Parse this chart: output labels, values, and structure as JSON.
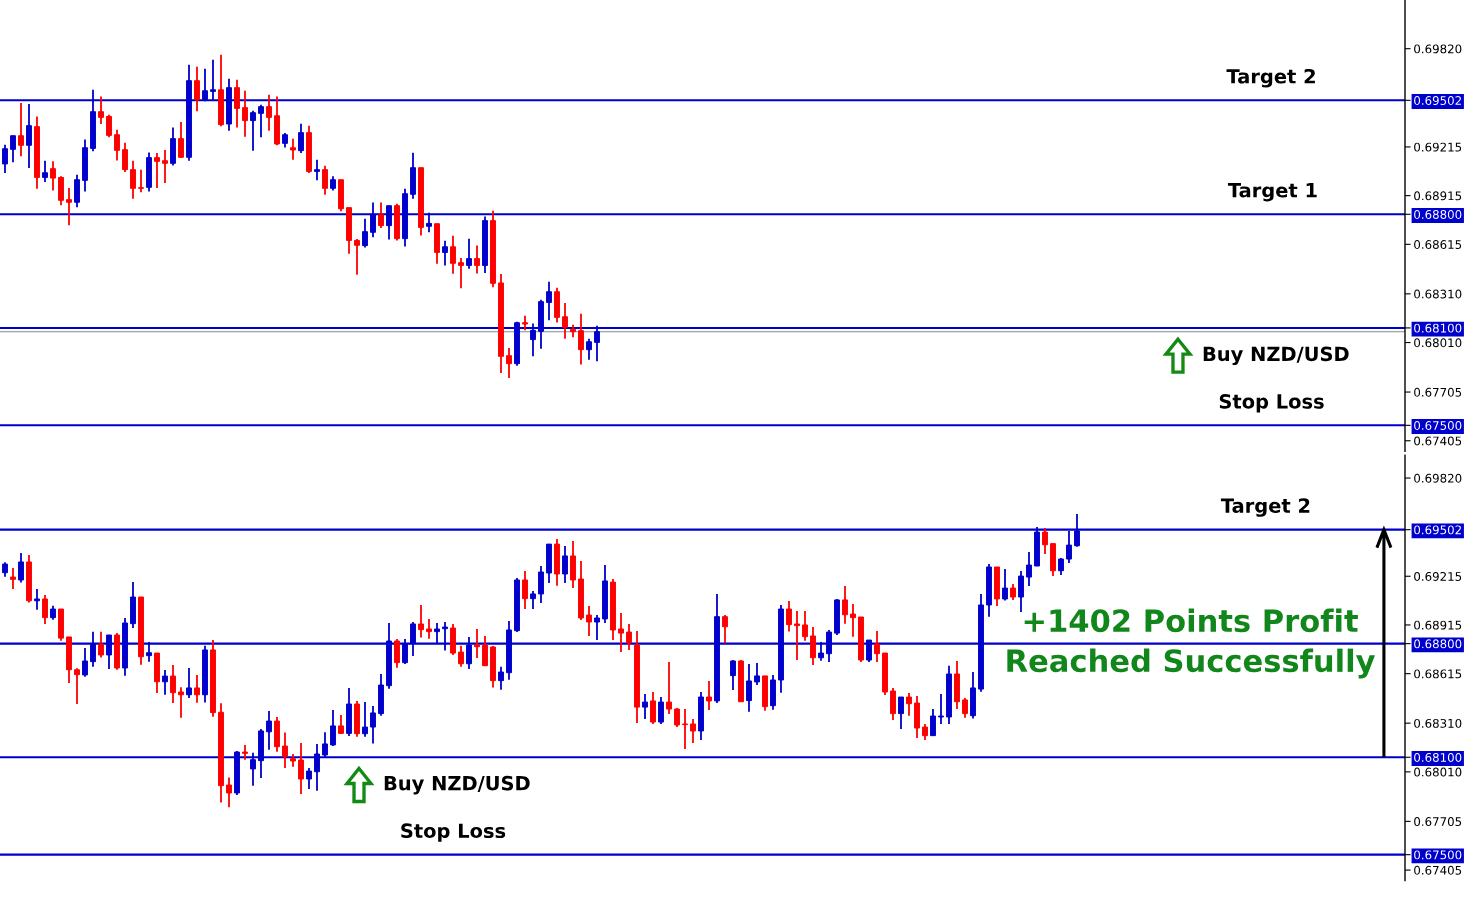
{
  "chart_data": [
    {
      "type": "candlestick",
      "categories": [
        null,
        null,
        null,
        null,
        null,
        null,
        null,
        null,
        null,
        null,
        null,
        null,
        null,
        null,
        null,
        null,
        null,
        null,
        null,
        null,
        null,
        null,
        null,
        null,
        null,
        null,
        null,
        null,
        null,
        null,
        null,
        null,
        null,
        null,
        null,
        null,
        null,
        null,
        null,
        null,
        null,
        null,
        null,
        null,
        null,
        null,
        null,
        null,
        null,
        null,
        null,
        null,
        null,
        null,
        null,
        null,
        null,
        null,
        null,
        null,
        null,
        null,
        null,
        null,
        null,
        null,
        null,
        null,
        null,
        null,
        null,
        null,
        null,
        null,
        null,
        null,
        null,
        null,
        null,
        null,
        null,
        null,
        null,
        null,
        null,
        null,
        null,
        null,
        null,
        null,
        null,
        null,
        null,
        null,
        null,
        null,
        null,
        null,
        null,
        null,
        null,
        null,
        null,
        null,
        null,
        null,
        null,
        null,
        null,
        null,
        null,
        null,
        null,
        null,
        null,
        null,
        null,
        null,
        null,
        null,
        null,
        null,
        null,
        null,
        null,
        null,
        null,
        null,
        null,
        null,
        null,
        null,
        null,
        null,
        null,
        null,
        null,
        null,
        null,
        null,
        null,
        null,
        null,
        null,
        null,
        null,
        null,
        null,
        null,
        null,
        null,
        null,
        null,
        null,
        null,
        null,
        null,
        null,
        null,
        null,
        null,
        null,
        null,
        null,
        null,
        null,
        null,
        null,
        null,
        null,
        null,
        null,
        null,
        null,
        null
      ],
      "ohlc": [
        [
          0.6911,
          0.69229,
          0.69054,
          0.69204
        ],
        [
          0.692,
          0.69284,
          0.6912,
          0.69284
        ],
        [
          0.69284,
          0.69485,
          0.69157,
          0.69225
        ],
        [
          0.69225,
          0.69479,
          0.69085,
          0.69346
        ],
        [
          0.6934,
          0.69403,
          0.68958,
          0.69027
        ],
        [
          0.69027,
          0.6913,
          0.68999,
          0.69056
        ],
        [
          0.69081,
          0.69126,
          0.68947,
          0.69023
        ],
        [
          0.69027,
          0.69034,
          0.68855,
          0.68886
        ],
        [
          0.6889,
          0.68962,
          0.68732,
          0.68874
        ],
        [
          0.68874,
          0.69044,
          0.68843,
          0.69013
        ],
        [
          0.69009,
          0.6926,
          0.68941,
          0.6921
        ],
        [
          0.69206,
          0.69567,
          0.69188,
          0.69432
        ],
        [
          0.69432,
          0.69526,
          0.69356,
          0.69397
        ],
        [
          0.69403,
          0.69413,
          0.69274,
          0.69286
        ],
        [
          0.6929,
          0.69321,
          0.69132,
          0.69194
        ],
        [
          0.69198,
          0.69241,
          0.6906,
          0.69075
        ],
        [
          0.69075,
          0.6913,
          0.68896,
          0.6896
        ],
        [
          0.68964,
          0.69075,
          0.68935,
          0.6896
        ],
        [
          0.68966,
          0.69181,
          0.68941,
          0.69149
        ],
        [
          0.69149,
          0.69177,
          0.68962,
          0.69126
        ],
        [
          0.6913,
          0.69196,
          0.68993,
          0.69114
        ],
        [
          0.69114,
          0.69335,
          0.69101,
          0.69266
        ],
        [
          0.69266,
          0.69368,
          0.69147,
          0.69151
        ],
        [
          0.69151,
          0.69721,
          0.6913,
          0.69623
        ],
        [
          0.69623,
          0.69709,
          0.69434,
          0.69506
        ],
        [
          0.69506,
          0.69697,
          0.69496,
          0.69561
        ],
        [
          0.69557,
          0.69752,
          0.69506,
          0.69567
        ],
        [
          0.69567,
          0.69783,
          0.69342,
          0.69352
        ],
        [
          0.69356,
          0.69635,
          0.69315,
          0.6958
        ],
        [
          0.6958,
          0.69629,
          0.69335,
          0.69452
        ],
        [
          0.69457,
          0.69561,
          0.69278,
          0.69377
        ],
        [
          0.69377,
          0.69438,
          0.69192,
          0.69426
        ],
        [
          0.69422,
          0.69475,
          0.69274,
          0.69463
        ],
        [
          0.69463,
          0.69537,
          0.69315,
          0.69397
        ],
        [
          0.69407,
          0.69526,
          0.69225,
          0.69233
        ],
        [
          0.69237,
          0.69301,
          0.69212,
          0.6929
        ],
        [
          0.6921,
          0.69266,
          0.69136,
          0.69196
        ],
        [
          0.69192,
          0.69358,
          0.69177,
          0.69303
        ],
        [
          0.69303,
          0.69346,
          0.69054,
          0.69064
        ],
        [
          0.69064,
          0.69136,
          0.69009,
          0.69075
        ],
        [
          0.69075,
          0.69099,
          0.68921,
          0.6896
        ],
        [
          0.6896,
          0.69034,
          0.68947,
          0.69013
        ],
        [
          0.69013,
          0.69013,
          0.68818,
          0.68834
        ],
        [
          0.68841,
          0.68841,
          0.68557,
          0.68639
        ],
        [
          0.68639,
          0.68648,
          0.68428,
          0.68609
        ],
        [
          0.68607,
          0.68773,
          0.68596,
          0.68693
        ],
        [
          0.68689,
          0.68873,
          0.68658,
          0.68797
        ],
        [
          0.68797,
          0.68873,
          0.68715,
          0.6873
        ],
        [
          0.6873,
          0.68853,
          0.68644,
          0.68853
        ],
        [
          0.68853,
          0.68865,
          0.68639,
          0.6865
        ],
        [
          0.6865,
          0.68958,
          0.68602,
          0.68927
        ],
        [
          0.68923,
          0.69179,
          0.68896,
          0.69087
        ],
        [
          0.69087,
          0.69087,
          0.6867,
          0.68719
        ],
        [
          0.68726,
          0.6881,
          0.68689,
          0.68744
        ],
        [
          0.68742,
          0.68742,
          0.68496,
          0.68565
        ],
        [
          0.68565,
          0.68637,
          0.68485,
          0.686
        ],
        [
          0.686,
          0.68668,
          0.68434,
          0.68498
        ],
        [
          0.68502,
          0.68531,
          0.68344,
          0.68485
        ],
        [
          0.68485,
          0.6865,
          0.68465,
          0.68527
        ],
        [
          0.68527,
          0.68607,
          0.68436,
          0.68485
        ],
        [
          0.68485,
          0.68787,
          0.68438,
          0.68761
        ],
        [
          0.68761,
          0.68822,
          0.6835,
          0.68375
        ],
        [
          0.68377,
          0.68432,
          0.67822,
          0.67925
        ],
        [
          0.67929,
          0.67976,
          0.67792,
          0.6788
        ],
        [
          0.6788,
          0.68138,
          0.67867,
          0.68132
        ],
        [
          0.68132,
          0.68175,
          0.68085,
          0.68124
        ],
        [
          0.68028,
          0.68127,
          0.67925,
          0.68085
        ],
        [
          0.68079,
          0.68274,
          0.67972,
          0.68262
        ],
        [
          0.68257,
          0.68385,
          0.68147,
          0.68323
        ],
        [
          0.68323,
          0.68348,
          0.68134,
          0.68165
        ],
        [
          0.68169,
          0.68253,
          0.68034,
          0.68104
        ],
        [
          0.68091,
          0.6812,
          0.68042,
          0.68077
        ],
        [
          0.68083,
          0.68188,
          0.67874,
          0.67966
        ],
        [
          0.67966,
          0.68034,
          0.67904,
          0.68015
        ],
        [
          0.68011,
          0.68114,
          0.67894,
          0.68077
        ],
        null,
        null,
        null,
        null,
        null,
        null,
        null,
        null,
        null,
        null,
        null,
        null,
        null,
        null,
        null,
        null,
        null,
        null,
        null,
        null,
        null,
        null,
        null,
        null,
        null,
        null,
        null,
        null,
        null,
        null,
        null,
        null,
        null,
        null,
        null,
        null,
        null,
        null,
        null,
        null,
        null,
        null,
        null,
        null,
        null,
        null,
        null,
        null,
        null,
        null,
        null,
        null,
        null,
        null,
        null,
        null,
        null,
        null,
        null,
        null,
        null,
        null,
        null,
        null,
        null,
        null,
        null,
        null,
        null,
        null,
        null,
        null,
        null,
        null,
        null,
        null,
        null,
        null,
        null,
        null,
        null,
        null,
        null,
        null,
        null,
        null,
        null,
        null,
        null,
        null,
        null,
        null,
        null,
        null,
        null,
        null,
        null,
        null,
        null,
        null
      ],
      "colors": [
        "#0000cc",
        "#0000cc",
        "#ff0000",
        "#0000cc",
        "#ff0000",
        "#0000cc",
        "#ff0000",
        "#ff0000",
        "#ff0000",
        "#0000cc",
        "#0000cc",
        "#0000cc",
        "#ff0000",
        "#ff0000",
        "#ff0000",
        "#ff0000",
        "#ff0000",
        "#ff0000",
        "#0000cc",
        "#ff0000",
        "#ff0000",
        "#0000cc",
        "#ff0000",
        "#0000cc",
        "#ff0000",
        "#0000cc",
        "#0000cc",
        "#ff0000",
        "#0000cc",
        "#ff0000",
        "#ff0000",
        "#0000cc",
        "#0000cc",
        "#ff0000",
        "#ff0000",
        "#0000cc",
        "#ff0000",
        "#0000cc",
        "#ff0000",
        "#0000cc",
        "#ff0000",
        "#0000cc",
        "#ff0000",
        "#ff0000",
        "#ff0000",
        "#0000cc",
        "#0000cc",
        "#ff0000",
        "#0000cc",
        "#ff0000",
        "#0000cc",
        "#0000cc",
        "#ff0000",
        "#0000cc",
        "#ff0000",
        "#0000cc",
        "#ff0000",
        "#ff0000",
        "#0000cc",
        "#ff0000",
        "#0000cc",
        "#ff0000",
        "#ff0000",
        "#ff0000",
        "#0000cc",
        "#ff0000",
        "#0000cc",
        "#0000cc",
        "#0000cc",
        "#ff0000",
        "#ff0000",
        "#ff0000",
        "#ff0000",
        "#0000cc",
        "#0000cc",
        null,
        null,
        null,
        null,
        null,
        null,
        null,
        null,
        null,
        null,
        null,
        null,
        null,
        null,
        null,
        null,
        null,
        null,
        null,
        null,
        null,
        null,
        null,
        null,
        null,
        null,
        null,
        null,
        null,
        null,
        null,
        null,
        null,
        null,
        null,
        null,
        null,
        null,
        null,
        null,
        null,
        null,
        null,
        null,
        null,
        null,
        null,
        null,
        null,
        null,
        null,
        null,
        null,
        null,
        null,
        null,
        null,
        null,
        null,
        null,
        null,
        null,
        null,
        null,
        null,
        null,
        null,
        null,
        null,
        null,
        null,
        null,
        null,
        null,
        null,
        null,
        null,
        null,
        null,
        null,
        null,
        null,
        null,
        null,
        null,
        null,
        null,
        null,
        null,
        null,
        null,
        null,
        null,
        null,
        null,
        null,
        null,
        null,
        null,
        null
      ],
      "ylim": [
        0.6734,
        0.7012
      ],
      "yticks": [
        {
          "value": 0.6982,
          "label": "0.69820"
        },
        {
          "value": 0.69502,
          "label": "0.69502"
        },
        {
          "value": 0.69215,
          "label": "0.69215"
        },
        {
          "value": 0.68915,
          "label": "0.68915"
        },
        {
          "value": 0.688,
          "label": "0.68800"
        },
        {
          "value": 0.68615,
          "label": "0.68615"
        },
        {
          "value": 0.6831,
          "label": "0.68310"
        },
        {
          "value": 0.681,
          "label": "0.68100"
        },
        {
          "value": 0.6801,
          "label": "0.68010"
        },
        {
          "value": 0.67705,
          "label": "0.67705"
        },
        {
          "value": 0.675,
          "label": "0.67500"
        },
        {
          "value": 0.67405,
          "label": "0.67405"
        }
      ],
      "tick_labels": "y",
      "ref_lines": [
        {
          "axis": "y",
          "value": 0.69502,
          "label": "Target 2",
          "color": "#0000cc"
        },
        {
          "axis": "y",
          "value": 0.688,
          "label": "Target 1",
          "color": "#0000cc"
        },
        {
          "axis": "y",
          "value": 0.681,
          "label": "Buy NZD/USD",
          "color": "#0000cc"
        },
        {
          "axis": "y",
          "value": 0.675,
          "label": "Stop Loss",
          "color": "#0000cc"
        },
        {
          "axis": "y",
          "value": 0.68077,
          "color": "#7d8c9c"
        }
      ]
    },
    {
      "type": "candlestick",
      "categories": [
        null,
        null,
        null,
        null,
        null,
        null,
        null,
        null,
        null,
        null,
        null,
        null,
        null,
        null,
        null,
        null,
        null,
        null,
        null,
        null,
        null,
        null,
        null,
        null,
        null,
        null,
        null,
        null,
        null,
        null,
        null,
        null,
        null,
        null,
        null,
        null,
        null,
        null,
        null,
        null,
        null,
        null,
        null,
        null,
        null,
        null,
        null,
        null,
        null,
        null,
        null,
        null,
        null,
        null,
        null,
        null,
        null,
        null,
        null,
        null,
        null,
        null,
        null,
        null,
        null,
        null,
        null,
        null,
        null,
        null,
        null,
        null,
        null,
        null,
        null,
        null,
        null,
        null,
        null,
        null,
        null,
        null,
        null,
        null,
        null,
        null,
        null,
        null,
        null,
        null,
        null,
        null,
        null,
        null,
        null,
        null,
        null,
        null,
        null,
        null,
        null,
        null,
        null,
        null,
        null,
        null,
        null,
        null,
        null,
        null,
        null,
        null,
        null,
        null,
        null,
        null,
        null,
        null,
        null,
        null,
        null,
        null,
        null,
        null,
        null,
        null,
        null,
        null,
        null,
        null,
        null,
        null,
        null,
        null,
        null,
        null,
        null,
        null,
        null,
        null,
        null,
        null,
        null,
        null,
        null,
        null,
        null,
        null,
        null,
        null,
        null,
        null,
        null,
        null,
        null,
        null,
        null,
        null,
        null,
        null,
        null,
        null,
        null,
        null,
        null,
        null,
        null,
        null,
        null,
        null,
        null,
        null,
        null,
        null,
        null
      ],
      "ohlc": [
        [
          0.69237,
          0.69301,
          0.69212,
          0.6929
        ],
        [
          0.6921,
          0.69266,
          0.69136,
          0.69196
        ],
        [
          0.69192,
          0.69358,
          0.69177,
          0.69303
        ],
        [
          0.69303,
          0.69346,
          0.69054,
          0.69064
        ],
        [
          0.69064,
          0.69136,
          0.69009,
          0.69075
        ],
        [
          0.69075,
          0.69099,
          0.68921,
          0.6896
        ],
        [
          0.6896,
          0.69034,
          0.68947,
          0.69013
        ],
        [
          0.69013,
          0.69013,
          0.68818,
          0.68834
        ],
        [
          0.68841,
          0.68841,
          0.68557,
          0.68639
        ],
        [
          0.68639,
          0.68648,
          0.68428,
          0.68609
        ],
        [
          0.68607,
          0.68773,
          0.68596,
          0.68693
        ],
        [
          0.68689,
          0.68873,
          0.68658,
          0.68797
        ],
        [
          0.68797,
          0.68873,
          0.68715,
          0.6873
        ],
        [
          0.6873,
          0.68853,
          0.68644,
          0.68853
        ],
        [
          0.68853,
          0.68865,
          0.68639,
          0.6865
        ],
        [
          0.6865,
          0.68958,
          0.68602,
          0.68927
        ],
        [
          0.68923,
          0.69179,
          0.68896,
          0.69087
        ],
        [
          0.69087,
          0.69087,
          0.6867,
          0.68719
        ],
        [
          0.68726,
          0.6881,
          0.68689,
          0.68744
        ],
        [
          0.68742,
          0.68742,
          0.68496,
          0.68565
        ],
        [
          0.68565,
          0.68637,
          0.68485,
          0.686
        ],
        [
          0.686,
          0.68668,
          0.68434,
          0.68498
        ],
        [
          0.68502,
          0.68531,
          0.68344,
          0.68485
        ],
        [
          0.68485,
          0.6865,
          0.68465,
          0.68527
        ],
        [
          0.68527,
          0.68607,
          0.68436,
          0.68485
        ],
        [
          0.68485,
          0.68787,
          0.68438,
          0.68761
        ],
        [
          0.68761,
          0.68822,
          0.6835,
          0.68375
        ],
        [
          0.68377,
          0.68432,
          0.67822,
          0.67925
        ],
        [
          0.67929,
          0.67976,
          0.67792,
          0.6788
        ],
        [
          0.6788,
          0.68138,
          0.67867,
          0.68132
        ],
        [
          0.68132,
          0.68175,
          0.68085,
          0.68124
        ],
        [
          0.68028,
          0.68127,
          0.67925,
          0.68085
        ],
        [
          0.68079,
          0.68274,
          0.67972,
          0.68262
        ],
        [
          0.68257,
          0.68385,
          0.68147,
          0.68323
        ],
        [
          0.68323,
          0.68348,
          0.68134,
          0.68165
        ],
        [
          0.68169,
          0.68253,
          0.68034,
          0.68104
        ],
        [
          0.68091,
          0.6812,
          0.68042,
          0.68077
        ],
        [
          0.68083,
          0.68188,
          0.67874,
          0.67966
        ],
        [
          0.67966,
          0.68034,
          0.67904,
          0.68015
        ],
        [
          0.68011,
          0.68182,
          0.67894,
          0.6812
        ],
        [
          0.68114,
          0.68254,
          0.681,
          0.68182
        ],
        [
          0.68176,
          0.68391,
          0.68169,
          0.68293
        ],
        [
          0.68293,
          0.6836,
          0.68243,
          0.68247
        ],
        [
          0.68247,
          0.68527,
          0.68231,
          0.68428
        ],
        [
          0.68428,
          0.68447,
          0.68227,
          0.68245
        ],
        [
          0.68245,
          0.6844,
          0.68227,
          0.68286
        ],
        [
          0.68286,
          0.68416,
          0.68184,
          0.68373
        ],
        [
          0.68369,
          0.68613,
          0.68356,
          0.68545
        ],
        [
          0.68541,
          0.68927,
          0.68522,
          0.68816
        ],
        [
          0.68816,
          0.68828,
          0.68652,
          0.68683
        ],
        [
          0.68683,
          0.68828,
          0.68674,
          0.688
        ],
        [
          0.688,
          0.68933,
          0.68724,
          0.68921
        ],
        [
          0.68921,
          0.69038,
          0.68837,
          0.68886
        ],
        [
          0.6889,
          0.68952,
          0.6883,
          0.68874
        ],
        [
          0.68874,
          0.68927,
          0.68804,
          0.6889
        ],
        [
          0.68892,
          0.68933,
          0.68757,
          0.68902
        ],
        [
          0.68896,
          0.68921,
          0.6873,
          0.68742
        ],
        [
          0.68748,
          0.68787,
          0.68658,
          0.68676
        ],
        [
          0.68676,
          0.68841,
          0.68644,
          0.68791
        ],
        [
          0.68791,
          0.6889,
          0.68711,
          0.68781
        ],
        [
          0.68791,
          0.68847,
          0.68664,
          0.68664
        ],
        [
          0.68779,
          0.68785,
          0.68529,
          0.68572
        ],
        [
          0.68572,
          0.68658,
          0.68516,
          0.68625
        ],
        [
          0.68621,
          0.68939,
          0.68578,
          0.68884
        ],
        [
          0.6888,
          0.69204,
          0.68871,
          0.69192
        ],
        [
          0.69192,
          0.69247,
          0.69013,
          0.69077
        ],
        [
          0.69077,
          0.69124,
          0.69013,
          0.69106
        ],
        [
          0.69106,
          0.69278,
          0.6905,
          0.69241
        ],
        [
          0.69235,
          0.69413,
          0.69173,
          0.69413
        ],
        [
          0.69413,
          0.69444,
          0.69157,
          0.69229
        ],
        [
          0.69229,
          0.69401,
          0.69173,
          0.6934
        ],
        [
          0.6934,
          0.69432,
          0.69142,
          0.69192
        ],
        [
          0.69198,
          0.69309,
          0.68945,
          0.68958
        ],
        [
          0.68976,
          0.69032,
          0.68847,
          0.68933
        ],
        [
          0.68933,
          0.68976,
          0.68822,
          0.68958
        ],
        [
          0.68952,
          0.69284,
          0.68927,
          0.69186
        ],
        [
          0.69179,
          0.69198,
          0.68822,
          0.68884
        ],
        [
          0.6889,
          0.68988,
          0.68748,
          0.68865
        ],
        [
          0.68871,
          0.68921,
          0.68761,
          0.68804
        ],
        [
          0.68791,
          0.68878,
          0.68311,
          0.68409
        ],
        [
          0.68409,
          0.6849,
          0.68336,
          0.6844
        ],
        [
          0.68447,
          0.68502,
          0.68305,
          0.68317
        ],
        [
          0.68317,
          0.68471,
          0.68305,
          0.6844
        ],
        [
          0.6844,
          0.68687,
          0.68366,
          0.68397
        ],
        [
          0.68397,
          0.68403,
          0.68286,
          0.68299
        ],
        [
          0.68305,
          0.68397,
          0.68151,
          0.68301
        ],
        [
          0.68305,
          0.68336,
          0.68188,
          0.68262
        ],
        [
          0.68262,
          0.68502,
          0.68206,
          0.68471
        ],
        [
          0.68471,
          0.6857,
          0.68391,
          0.68447
        ],
        [
          0.68447,
          0.69106,
          0.68434,
          0.68966
        ],
        [
          0.68966,
          0.68976,
          0.68802,
          0.68904
        ],
        [
          0.68603,
          0.68699,
          0.68514,
          0.68693
        ],
        [
          0.68693,
          0.68699,
          0.68442,
          0.68442
        ],
        [
          0.68449,
          0.68674,
          0.68381,
          0.6857
        ],
        [
          0.68564,
          0.68681,
          0.68545,
          0.68601
        ],
        [
          0.68601,
          0.68601,
          0.68387,
          0.68412
        ],
        [
          0.68418,
          0.68607,
          0.68393,
          0.68576
        ],
        [
          0.68576,
          0.69038,
          0.68498,
          0.69013
        ],
        [
          0.69013,
          0.69062,
          0.68874,
          0.68917
        ],
        [
          0.68921,
          0.69001,
          0.68699,
          0.68911
        ],
        [
          0.68915,
          0.69001,
          0.68818,
          0.68843
        ],
        [
          0.68847,
          0.68902,
          0.68668,
          0.68713
        ],
        [
          0.68713,
          0.6881,
          0.68695,
          0.68742
        ],
        [
          0.68738,
          0.68884,
          0.68687,
          0.68871
        ],
        [
          0.68865,
          0.69075,
          0.68853,
          0.69069
        ],
        [
          0.69069,
          0.69155,
          0.68923,
          0.68978
        ],
        [
          0.68982,
          0.69044,
          0.68843,
          0.6896
        ],
        [
          0.68964,
          0.68964,
          0.68687,
          0.68699
        ],
        [
          0.68699,
          0.68822,
          0.68687,
          0.68822
        ],
        [
          0.68798,
          0.68878,
          0.68687,
          0.68738
        ],
        [
          0.68742,
          0.68742,
          0.68483,
          0.68502
        ],
        [
          0.68508,
          0.68527,
          0.6833,
          0.68369
        ],
        [
          0.68369,
          0.68471,
          0.68274,
          0.68471
        ],
        [
          0.68471,
          0.68496,
          0.68356,
          0.6843
        ],
        [
          0.68434,
          0.68477,
          0.68219,
          0.6828
        ],
        [
          0.68286,
          0.68305,
          0.68206,
          0.68233
        ],
        [
          0.68233,
          0.68397,
          0.68233,
          0.68354
        ],
        [
          0.68348,
          0.6849,
          0.68305,
          0.68354
        ],
        [
          0.68348,
          0.68664,
          0.68305,
          0.68613
        ],
        [
          0.68613,
          0.68693,
          0.68397,
          0.68442
        ],
        [
          0.68453,
          0.68465,
          0.68344,
          0.68369
        ],
        [
          0.68356,
          0.68625,
          0.68338,
          0.68527
        ],
        [
          0.6852,
          0.69106,
          0.68504,
          0.69038
        ],
        [
          0.69038,
          0.6929,
          0.68966,
          0.69272
        ],
        [
          0.69272,
          0.69272,
          0.69032,
          0.69075
        ],
        [
          0.69075,
          0.6926,
          0.69065,
          0.69142
        ],
        [
          0.69142,
          0.69167,
          0.69069,
          0.69087
        ],
        [
          0.69087,
          0.69247,
          0.68995,
          0.69216
        ],
        [
          0.6921,
          0.69364,
          0.69155,
          0.69284
        ],
        [
          0.69278,
          0.69518,
          0.69278,
          0.69487
        ],
        [
          0.69487,
          0.69512,
          0.69352,
          0.69409
        ],
        [
          0.69416,
          0.69416,
          0.69216,
          0.69249
        ],
        [
          0.69249,
          0.69327,
          0.69223,
          0.69321
        ],
        [
          0.69321,
          0.69494,
          0.69296,
          0.69407
        ],
        [
          0.69403,
          0.69598,
          0.69397,
          0.69494
        ],
        null,
        null,
        null,
        null,
        null,
        null,
        null,
        null,
        null,
        null,
        null,
        null,
        null,
        null,
        null,
        null,
        null,
        null,
        null,
        null,
        null,
        null,
        null,
        null,
        null,
        null,
        null,
        null,
        null,
        null,
        null,
        null,
        null,
        null,
        null,
        null,
        null,
        null,
        null,
        null
      ],
      "colors": [
        "#0000cc",
        "#ff0000",
        "#0000cc",
        "#ff0000",
        "#0000cc",
        "#ff0000",
        "#0000cc",
        "#ff0000",
        "#ff0000",
        "#ff0000",
        "#0000cc",
        "#0000cc",
        "#ff0000",
        "#0000cc",
        "#ff0000",
        "#0000cc",
        "#0000cc",
        "#ff0000",
        "#0000cc",
        "#ff0000",
        "#0000cc",
        "#ff0000",
        "#ff0000",
        "#0000cc",
        "#ff0000",
        "#0000cc",
        "#ff0000",
        "#ff0000",
        "#ff0000",
        "#0000cc",
        "#ff0000",
        "#0000cc",
        "#0000cc",
        "#0000cc",
        "#ff0000",
        "#ff0000",
        "#ff0000",
        "#ff0000",
        "#0000cc",
        "#0000cc",
        "#0000cc",
        "#0000cc",
        "#ff0000",
        "#0000cc",
        "#ff0000",
        "#0000cc",
        "#0000cc",
        "#0000cc",
        "#0000cc",
        "#ff0000",
        "#0000cc",
        "#0000cc",
        "#ff0000",
        "#ff0000",
        "#0000cc",
        "#0000cc",
        "#ff0000",
        "#ff0000",
        "#0000cc",
        "#ff0000",
        "#ff0000",
        "#ff0000",
        "#0000cc",
        "#0000cc",
        "#0000cc",
        "#ff0000",
        "#0000cc",
        "#0000cc",
        "#0000cc",
        "#ff0000",
        "#0000cc",
        "#ff0000",
        "#ff0000",
        "#ff0000",
        "#0000cc",
        "#0000cc",
        "#ff0000",
        "#ff0000",
        "#ff0000",
        "#ff0000",
        "#0000cc",
        "#ff0000",
        "#0000cc",
        "#ff0000",
        "#ff0000",
        "#ff0000",
        "#ff0000",
        "#0000cc",
        "#ff0000",
        "#0000cc",
        "#ff0000",
        "#0000cc",
        "#ff0000",
        "#0000cc",
        "#0000cc",
        "#ff0000",
        "#0000cc",
        "#0000cc",
        "#ff0000",
        "#ff0000",
        "#ff0000",
        "#ff0000",
        "#0000cc",
        "#0000cc",
        "#0000cc",
        "#ff0000",
        "#ff0000",
        "#ff0000",
        "#0000cc",
        "#ff0000",
        "#ff0000",
        "#ff0000",
        "#0000cc",
        "#ff0000",
        "#ff0000",
        "#ff0000",
        "#0000cc",
        "#0000cc",
        "#0000cc",
        "#ff0000",
        "#ff0000",
        "#0000cc",
        "#0000cc",
        "#0000cc",
        "#ff0000",
        "#0000cc",
        "#ff0000",
        "#0000cc",
        "#0000cc",
        "#0000cc",
        "#ff0000",
        "#ff0000",
        "#0000cc",
        "#0000cc",
        "#0000cc",
        null,
        null,
        null,
        null,
        null,
        null,
        null,
        null,
        null,
        null,
        null,
        null,
        null,
        null,
        null,
        null,
        null,
        null,
        null,
        null,
        null,
        null,
        null,
        null,
        null,
        null,
        null,
        null,
        null,
        null,
        null,
        null,
        null,
        null,
        null,
        null,
        null,
        null,
        null,
        null
      ],
      "ylim": [
        0.6734,
        0.6996
      ],
      "yticks": [
        {
          "value": 0.6982,
          "label": "0.69820"
        },
        {
          "value": 0.69502,
          "label": "0.69502"
        },
        {
          "value": 0.69215,
          "label": "0.69215"
        },
        {
          "value": 0.68915,
          "label": "0.68915"
        },
        {
          "value": 0.688,
          "label": "0.68800"
        },
        {
          "value": 0.68615,
          "label": "0.68615"
        },
        {
          "value": 0.6831,
          "label": "0.68310"
        },
        {
          "value": 0.681,
          "label": "0.68100"
        },
        {
          "value": 0.6801,
          "label": "0.68010"
        },
        {
          "value": 0.67705,
          "label": "0.67705"
        },
        {
          "value": 0.675,
          "label": "0.67500"
        },
        {
          "value": 0.67405,
          "label": "0.67405"
        }
      ],
      "tick_labels": "y",
      "ref_lines": [
        {
          "axis": "y",
          "value": 0.69502,
          "label": "Target 2",
          "color": "#0000cc"
        },
        {
          "axis": "y",
          "value": 0.688,
          "color": "#0000cc"
        },
        {
          "axis": "y",
          "value": 0.681,
          "label": "Buy NZD/USD",
          "color": "#0000cc"
        },
        {
          "axis": "y",
          "value": 0.675,
          "label": "Stop Loss",
          "color": "#0000cc"
        }
      ],
      "annotations": [
        "+1402 Points Profit\nReached Successfully"
      ]
    }
  ]
}
